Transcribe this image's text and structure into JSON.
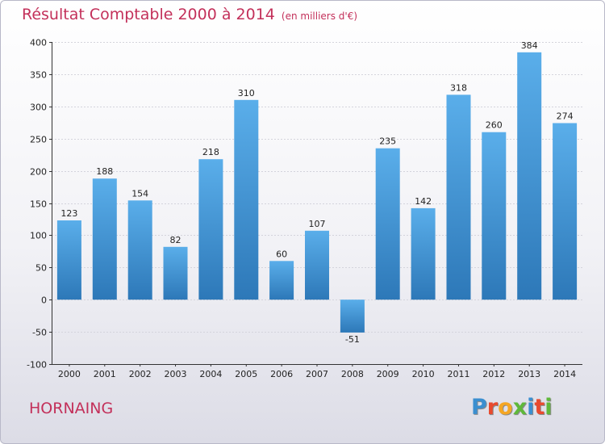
{
  "chart_data": {
    "type": "bar",
    "title": "Résultat Comptable 2000 à 2014",
    "subtitle": "(en milliers d'€)",
    "categories": [
      "2000",
      "2001",
      "2002",
      "2003",
      "2004",
      "2005",
      "2006",
      "2007",
      "2008",
      "2009",
      "2010",
      "2011",
      "2012",
      "2013",
      "2014"
    ],
    "values": [
      123,
      188,
      154,
      82,
      218,
      310,
      60,
      107,
      -51,
      235,
      142,
      318,
      260,
      384,
      274
    ],
    "yticks": [
      400,
      350,
      300,
      250,
      200,
      150,
      100,
      50,
      0,
      -50,
      -100
    ],
    "ylim": [
      -100,
      400
    ],
    "xlabel": "",
    "ylabel": "",
    "grid": true,
    "colors": {
      "bar": "#3d8fd1",
      "bar_light": "#5aaeea",
      "bar_dark": "#2d78b8"
    }
  },
  "footer": {
    "city": "HORNAING",
    "logo_letters": [
      "P",
      "r",
      "o",
      "x",
      "i",
      "t",
      "i"
    ],
    "logo_colors": [
      "#3b8fd0",
      "#e94a2e",
      "#f5a623",
      "#5fb83a",
      "#3b8fd0",
      "#e94a2e",
      "#5fb83a"
    ]
  }
}
